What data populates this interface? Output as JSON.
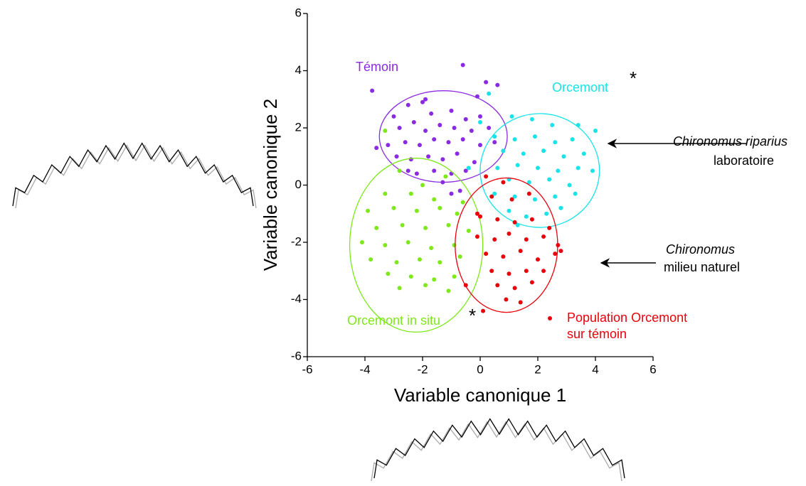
{
  "chart_data": {
    "type": "scatter",
    "xlabel": "Variable canonique 1",
    "ylabel": "Variable canonique 2",
    "xlim": [
      -6,
      6
    ],
    "ylim": [
      -6,
      6
    ],
    "xticks": [
      -6,
      -4,
      -2,
      0,
      2,
      4,
      6
    ],
    "yticks": [
      -6,
      -4,
      -2,
      0,
      2,
      4,
      6
    ],
    "series": [
      {
        "name": "Témoin",
        "color": "#8a2be2",
        "ellipse": {
          "center": [
            -1.28,
            1.7
          ],
          "radii": [
            2.22,
            1.6
          ]
        },
        "x": [
          -3.75,
          -0.6,
          0.2,
          0.6,
          -2.5,
          -2.0,
          -1.7,
          -1.0,
          -0.5,
          0.0,
          -2.8,
          -2.3,
          -1.9,
          -1.4,
          -0.9,
          -0.3,
          0.3,
          -3.2,
          -2.6,
          -2.1,
          -1.6,
          -1.1,
          -0.6,
          0.0,
          0.5,
          -3.6,
          -2.9,
          -2.4,
          -1.8,
          -1.3,
          -0.8,
          -0.2,
          -2.2,
          -1.6,
          -1.0,
          -0.5,
          -1.3,
          -0.7,
          -1.0,
          -3.0,
          -0.1,
          -1.9,
          -2.5
        ],
        "y": [
          3.3,
          4.2,
          3.6,
          3.5,
          2.8,
          2.9,
          2.5,
          2.6,
          2.3,
          2.4,
          2.0,
          2.2,
          1.9,
          2.1,
          2.0,
          1.9,
          2.0,
          1.4,
          1.5,
          1.4,
          1.6,
          1.5,
          1.6,
          1.4,
          1.5,
          1.3,
          1.0,
          0.9,
          1.0,
          0.9,
          1.1,
          0.8,
          0.4,
          0.5,
          0.4,
          0.5,
          0.1,
          -0.2,
          -0.3,
          2.4,
          3.1,
          3.0,
          0.5
        ]
      },
      {
        "name": "Orcemont",
        "color": "#17e3e8",
        "significance": "*",
        "ellipse": {
          "center": [
            2.07,
            0.51
          ],
          "radii": [
            2.07,
            1.99
          ]
        },
        "x": [
          0.3,
          1.1,
          1.8,
          2.5,
          3.4,
          4.0,
          0.5,
          1.2,
          1.9,
          2.6,
          3.2,
          0.8,
          1.5,
          2.2,
          2.9,
          3.6,
          0.6,
          1.3,
          2.0,
          2.7,
          3.4,
          3.9,
          1.0,
          1.7,
          2.4,
          3.1,
          0.5,
          1.2,
          1.9,
          2.6,
          3.3,
          1.0,
          1.6,
          2.3,
          2.8,
          1.3,
          0.0,
          -0.4
        ],
        "y": [
          3.2,
          2.4,
          2.3,
          2.1,
          2.1,
          1.9,
          1.7,
          1.6,
          1.7,
          1.5,
          1.6,
          1.2,
          1.1,
          1.2,
          1.0,
          1.1,
          0.6,
          0.7,
          0.6,
          0.5,
          0.6,
          0.5,
          0.2,
          0.1,
          0.2,
          0.0,
          -0.3,
          -0.4,
          -0.5,
          -0.4,
          -0.3,
          -0.9,
          -1.1,
          -1.0,
          -0.8,
          -1.4,
          2.2,
          0.6
        ]
      },
      {
        "name": "Orcemont in situ",
        "color": "#7ee81b",
        "significance": "*",
        "ellipse": {
          "center": [
            -2.22,
            -2.1
          ],
          "radii": [
            2.31,
            3.04
          ]
        },
        "x": [
          -2.8,
          -3.3,
          -2.0,
          -3.3,
          -2.4,
          -1.6,
          -3.9,
          -3.0,
          -2.2,
          -1.4,
          -0.8,
          -3.6,
          -2.7,
          -1.9,
          -1.1,
          -0.4,
          -4.1,
          -3.3,
          -2.5,
          -1.7,
          -0.9,
          -3.8,
          -2.9,
          -2.1,
          -1.4,
          -0.7,
          -3.2,
          -2.4,
          -1.6,
          -0.9,
          -2.8,
          -1.9,
          -1.1,
          -0.6,
          -1.2
        ],
        "y": [
          0.5,
          1.9,
          0.0,
          -0.3,
          -0.3,
          -0.5,
          -0.9,
          -0.8,
          -0.9,
          -0.8,
          -1.0,
          -1.5,
          -1.4,
          -1.5,
          -1.4,
          -1.6,
          -2.0,
          -2.1,
          -2.0,
          -2.2,
          -2.1,
          -2.6,
          -2.7,
          -2.6,
          -2.7,
          -2.5,
          -3.1,
          -3.2,
          -3.3,
          -3.2,
          -3.6,
          -3.5,
          -3.7,
          -0.6,
          0.3
        ]
      },
      {
        "name": "Population Orcemont sur témoin",
        "color": "#e8000b",
        "ellipse": {
          "center": [
            0.91,
            -2.1
          ],
          "radii": [
            1.78,
            2.35
          ]
        },
        "x": [
          0.2,
          0.8,
          0.4,
          1.1,
          1.7,
          0.0,
          0.6,
          1.2,
          1.8,
          2.4,
          -0.1,
          0.5,
          1.0,
          1.6,
          2.2,
          2.7,
          0.2,
          0.8,
          1.4,
          2.0,
          2.6,
          0.4,
          1.0,
          1.6,
          2.2,
          0.6,
          1.2,
          1.8,
          0.9,
          1.4,
          -0.5,
          0.1,
          -0.1,
          2.8
        ],
        "y": [
          0.3,
          0.1,
          -0.4,
          -0.5,
          -0.3,
          -1.1,
          -1.2,
          -1.3,
          -1.2,
          -1.5,
          -1.8,
          -1.9,
          -1.7,
          -1.9,
          -1.8,
          -2.1,
          -2.4,
          -2.5,
          -2.3,
          -2.6,
          -2.4,
          -3.0,
          -3.1,
          -3.0,
          -3.0,
          -3.5,
          -3.6,
          -3.4,
          -4.0,
          -4.1,
          -3.5,
          -4.4,
          -1.0,
          -2.3
        ]
      }
    ],
    "annotations": [
      {
        "text": "Chironomus riparius",
        "italic": true
      },
      {
        "text": "laboratoire"
      },
      {
        "text": "Chironomus",
        "italic": true
      },
      {
        "text": "milieu naturel"
      }
    ]
  }
}
